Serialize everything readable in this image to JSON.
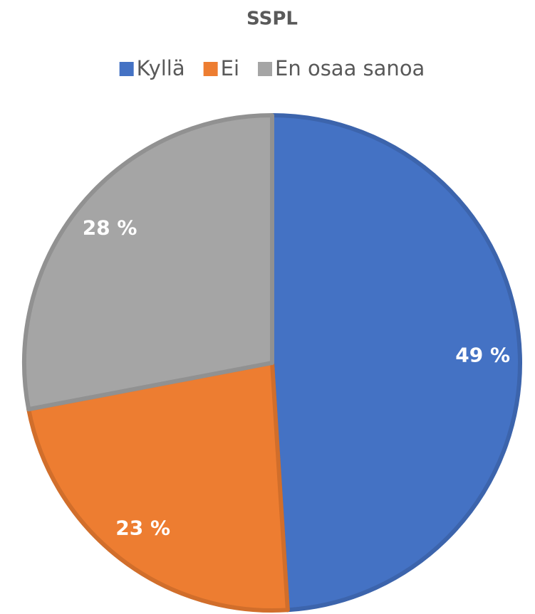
{
  "chart_data": {
    "type": "pie",
    "title": "SSPL",
    "categories": [
      "Kyllä",
      "Ei",
      "En osaa sanoa"
    ],
    "values": [
      49,
      23,
      28
    ],
    "value_labels": [
      "49 %",
      "23 %",
      "28 %"
    ],
    "colors": [
      "#4472c4",
      "#ed7d31",
      "#a5a5a5"
    ],
    "legend": "top"
  }
}
